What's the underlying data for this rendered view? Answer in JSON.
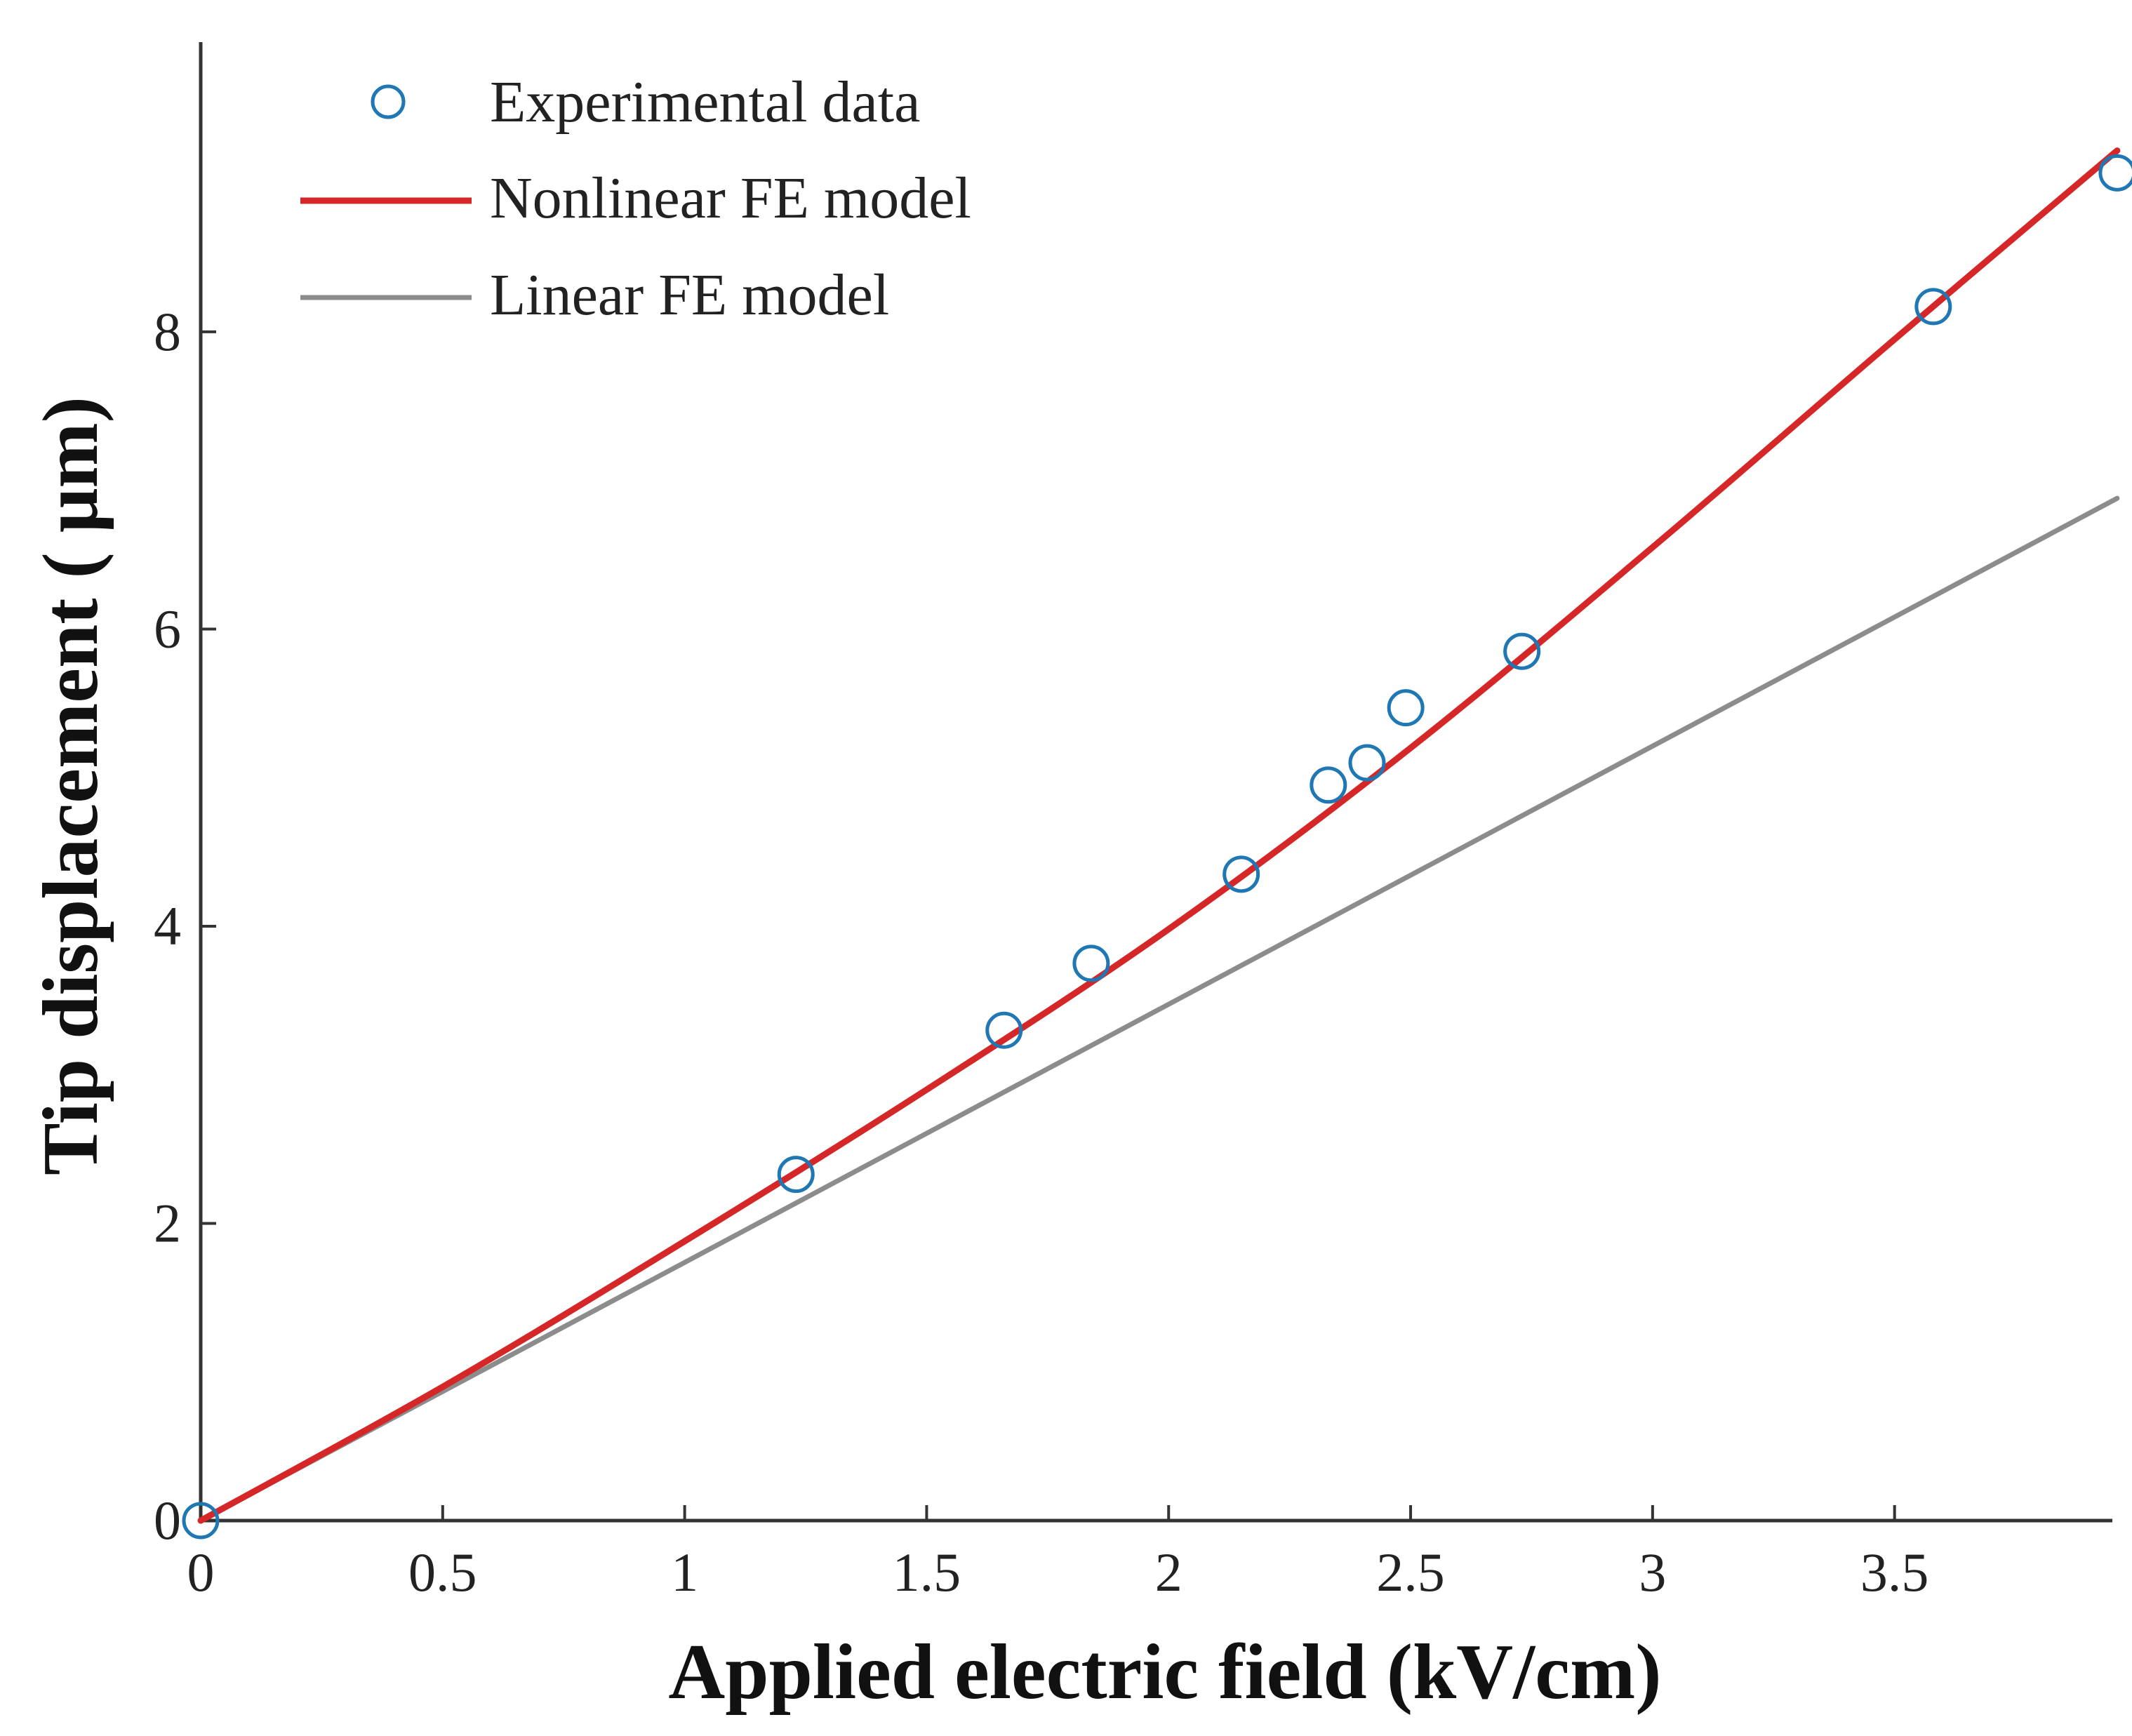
{
  "chart_data": {
    "type": "line",
    "title": "",
    "xlabel": "Applied electric field (kV/cm)",
    "ylabel": "Tip displacement ( μm)",
    "xlim": [
      0,
      3.95
    ],
    "ylim": [
      0,
      9.95
    ],
    "grid": false,
    "legend_position": "top-left",
    "x_ticks": [
      0,
      0.5,
      1,
      1.5,
      2,
      2.5,
      3,
      3.5
    ],
    "x_tick_labels": [
      "0",
      "0.5",
      "1",
      "1.5",
      "2",
      "2.5",
      "3",
      "3.5"
    ],
    "y_ticks": [
      0,
      2,
      4,
      6,
      8
    ],
    "y_tick_labels": [
      "0",
      "2",
      "4",
      "6",
      "8"
    ],
    "series": [
      {
        "name": "Experimental data",
        "kind": "scatter",
        "marker": "circle-open",
        "color": "#1f77b4",
        "x": [
          0,
          1.23,
          1.66,
          1.84,
          2.15,
          2.33,
          2.41,
          2.49,
          2.73,
          3.58,
          3.96
        ],
        "y": [
          0,
          2.33,
          3.3,
          3.75,
          4.35,
          4.95,
          5.1,
          5.47,
          5.85,
          8.17,
          9.07
        ]
      },
      {
        "name": "Nonlinear FE model",
        "kind": "line",
        "color": "#d62728",
        "x": [
          0,
          0.5,
          1.0,
          1.5,
          2.0,
          2.5,
          3.0,
          3.5,
          3.96
        ],
        "y": [
          0,
          0.9,
          1.88,
          2.9,
          3.98,
          5.2,
          6.55,
          7.95,
          9.22
        ]
      },
      {
        "name": "Linear FE model",
        "kind": "line",
        "color": "#8c8c8c",
        "x": [
          0,
          3.96
        ],
        "y": [
          0,
          6.88
        ]
      }
    ]
  }
}
